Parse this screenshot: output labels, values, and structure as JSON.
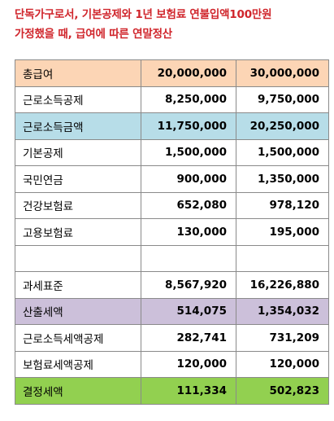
{
  "title": {
    "line1": "단독가구로서, 기본공제와 1년 보험료 연불입액100만원",
    "line2": "가정했을 때, 급여에 따른 연말정산"
  },
  "colors": {
    "title": "#d0262c",
    "peach": "#fcd5b5",
    "blue": "#b7dde8",
    "purple": "#ccc0da",
    "green": "#92d050"
  },
  "rows": [
    {
      "label": "총급여",
      "a": "20,000,000",
      "b": "30,000,000",
      "highlight": "peach"
    },
    {
      "label": "근로소득공제",
      "a": "8,250,000",
      "b": "9,750,000",
      "highlight": ""
    },
    {
      "label": "근로소득금액",
      "a": "11,750,000",
      "b": "20,250,000",
      "highlight": "blue"
    },
    {
      "label": "기본공제",
      "a": "1,500,000",
      "b": "1,500,000",
      "highlight": ""
    },
    {
      "label": "국민연금",
      "a": "900,000",
      "b": "1,350,000",
      "highlight": ""
    },
    {
      "label": "건강보험료",
      "a": "652,080",
      "b": "978,120",
      "highlight": ""
    },
    {
      "label": "고용보험료",
      "a": "130,000",
      "b": "195,000",
      "highlight": ""
    },
    {
      "label": "",
      "a": "",
      "b": "",
      "highlight": ""
    },
    {
      "label": "과세표준",
      "a": "8,567,920",
      "b": "16,226,880",
      "highlight": ""
    },
    {
      "label": "산출세액",
      "a": "514,075",
      "b": "1,354,032",
      "highlight": "purple"
    },
    {
      "label": "근로소득세액공제",
      "a": "282,741",
      "b": "731,209",
      "highlight": ""
    },
    {
      "label": "보험료세액공제",
      "a": "120,000",
      "b": "120,000",
      "highlight": ""
    },
    {
      "label": "결정세액",
      "a": "111,334",
      "b": "502,823",
      "highlight": "green"
    }
  ]
}
